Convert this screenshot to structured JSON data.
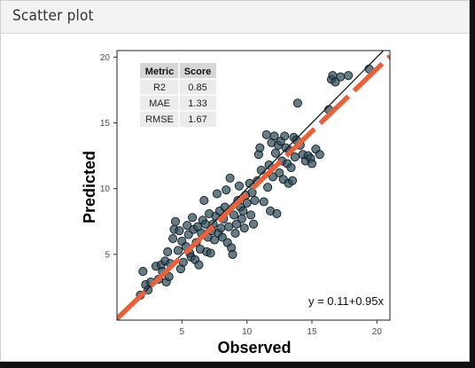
{
  "panel": {
    "title": "Scatter plot"
  },
  "colors": {
    "point_fill": "#2e4a57",
    "point_stroke": "#0f1d24",
    "fit_line": "#e8613a",
    "identity_line": "#1a1a1a",
    "table_header_bg": "#d6d6d6",
    "table_body_bg": "#ececec"
  },
  "metrics_table": {
    "headers": [
      "Metric",
      "Score"
    ],
    "rows": [
      [
        "R2",
        "0.85"
      ],
      [
        "MAE",
        "1.33"
      ],
      [
        "RMSE",
        "1.67"
      ]
    ]
  },
  "chart_data": {
    "type": "scatter",
    "xlabel": "Observed",
    "ylabel": "Predicted",
    "xlim": [
      0,
      21
    ],
    "ylim": [
      0,
      20.5
    ],
    "xticks": [
      5,
      10,
      15,
      20
    ],
    "yticks": [
      5,
      10,
      15,
      20
    ],
    "grid": false,
    "fit": {
      "intercept": 0.11,
      "slope": 0.95,
      "label": "y = 0.11+0.95x",
      "style": "dashed"
    },
    "identity_line": true,
    "points": [
      [
        1.8,
        1.9
      ],
      [
        2.0,
        3.7
      ],
      [
        2.2,
        2.7
      ],
      [
        2.4,
        2.3
      ],
      [
        2.6,
        2.9
      ],
      [
        3.0,
        4.1
      ],
      [
        3.2,
        3.1
      ],
      [
        3.4,
        4.2
      ],
      [
        3.5,
        3.7
      ],
      [
        3.7,
        4.5
      ],
      [
        3.8,
        2.9
      ],
      [
        3.9,
        5.2
      ],
      [
        4.0,
        3.3
      ],
      [
        4.1,
        4.3
      ],
      [
        4.3,
        6.2
      ],
      [
        4.4,
        6.9
      ],
      [
        4.5,
        7.5
      ],
      [
        4.7,
        5.3
      ],
      [
        4.8,
        6.8
      ],
      [
        4.9,
        3.9
      ],
      [
        5.0,
        6.0
      ],
      [
        5.1,
        4.4
      ],
      [
        5.3,
        5.6
      ],
      [
        5.4,
        7.2
      ],
      [
        5.5,
        6.5
      ],
      [
        5.6,
        5.1
      ],
      [
        5.7,
        4.8
      ],
      [
        5.8,
        7.8
      ],
      [
        5.9,
        6.9
      ],
      [
        6.0,
        4.6
      ],
      [
        6.1,
        5.9
      ],
      [
        6.2,
        7.1
      ],
      [
        6.3,
        4.2
      ],
      [
        6.4,
        5.4
      ],
      [
        6.5,
        6.6
      ],
      [
        6.6,
        7.6
      ],
      [
        6.7,
        9.1
      ],
      [
        6.8,
        7.3
      ],
      [
        6.9,
        5.2
      ],
      [
        7.0,
        6.3
      ],
      [
        7.1,
        8.1
      ],
      [
        7.2,
        5.1
      ],
      [
        7.3,
        6.8
      ],
      [
        7.4,
        7.3
      ],
      [
        7.5,
        6.1
      ],
      [
        7.6,
        7.9
      ],
      [
        7.7,
        9.6
      ],
      [
        7.8,
        6.6
      ],
      [
        7.9,
        8.3
      ],
      [
        8.0,
        7.0
      ],
      [
        8.1,
        6.3
      ],
      [
        8.2,
        7.7
      ],
      [
        8.3,
        8.6
      ],
      [
        8.4,
        9.9
      ],
      [
        8.5,
        5.9
      ],
      [
        8.6,
        7.1
      ],
      [
        8.7,
        10.8
      ],
      [
        8.8,
        5.5
      ],
      [
        8.9,
        5.0
      ],
      [
        9.0,
        8.0
      ],
      [
        9.1,
        6.6
      ],
      [
        9.2,
        7.3
      ],
      [
        9.3,
        9.1
      ],
      [
        9.4,
        10.2
      ],
      [
        9.5,
        8.6
      ],
      [
        9.6,
        7.7
      ],
      [
        9.7,
        8.3
      ],
      [
        9.8,
        7.0
      ],
      [
        9.9,
        9.5
      ],
      [
        10.0,
        8.9
      ],
      [
        10.2,
        10.4
      ],
      [
        10.3,
        8.0
      ],
      [
        10.4,
        9.7
      ],
      [
        10.5,
        7.3
      ],
      [
        10.6,
        9.1
      ],
      [
        10.8,
        10.6
      ],
      [
        10.9,
        12.6
      ],
      [
        11.0,
        13.1
      ],
      [
        11.1,
        11.4
      ],
      [
        11.3,
        9.0
      ],
      [
        11.5,
        14.1
      ],
      [
        11.6,
        10.1
      ],
      [
        11.7,
        11.8
      ],
      [
        11.8,
        8.3
      ],
      [
        11.9,
        13.5
      ],
      [
        12.0,
        10.9
      ],
      [
        12.1,
        14.0
      ],
      [
        12.2,
        12.7
      ],
      [
        12.3,
        8.1
      ],
      [
        12.4,
        13.3
      ],
      [
        12.5,
        11.2
      ],
      [
        12.6,
        13.6
      ],
      [
        12.7,
        12.1
      ],
      [
        12.8,
        10.7
      ],
      [
        12.9,
        14.0
      ],
      [
        13.0,
        13.1
      ],
      [
        13.1,
        11.9
      ],
      [
        13.2,
        10.4
      ],
      [
        13.3,
        12.9
      ],
      [
        13.4,
        11.6
      ],
      [
        13.5,
        10.6
      ],
      [
        13.6,
        13.9
      ],
      [
        13.7,
        12.4
      ],
      [
        13.8,
        13.7
      ],
      [
        13.9,
        16.5
      ],
      [
        14.1,
        13.3
      ],
      [
        14.3,
        12.6
      ],
      [
        14.5,
        12.1
      ],
      [
        14.7,
        12.5
      ],
      [
        14.9,
        12.3
      ],
      [
        15.0,
        11.9
      ],
      [
        15.3,
        13.0
      ],
      [
        15.6,
        12.6
      ],
      [
        16.3,
        16.0
      ],
      [
        16.5,
        18.3
      ],
      [
        16.6,
        18.6
      ],
      [
        16.8,
        18.1
      ],
      [
        17.2,
        18.5
      ],
      [
        17.8,
        18.6
      ],
      [
        19.4,
        19.1
      ]
    ]
  }
}
